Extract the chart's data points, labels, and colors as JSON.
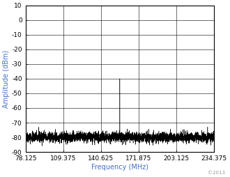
{
  "xlim": [
    78.125,
    234.375
  ],
  "ylim": [
    -90,
    10
  ],
  "xticks": [
    78.125,
    109.375,
    140.625,
    171.875,
    203.125,
    234.375
  ],
  "yticks": [
    -90,
    -80,
    -70,
    -60,
    -50,
    -40,
    -30,
    -20,
    -10,
    0,
    10
  ],
  "xlabel": "Frequency (MHz)",
  "ylabel": "Amplitude (dBm)",
  "noise_floor": -80,
  "noise_std": 1.8,
  "main_spike_freq": 156.25,
  "main_spike_amp": -40,
  "sub_spike_freq": 93.75,
  "sub_spike_amp": -75,
  "line_color": "#000000",
  "axis_label_color": "#4472C4",
  "tick_label_color": "#000000",
  "background_color": "#ffffff",
  "grid_color": "#000000",
  "copyright_text": "©2013",
  "copyright_color": "#999999",
  "copyright_fontsize": 5,
  "xlabel_fontsize": 7,
  "ylabel_fontsize": 7,
  "tick_fontsize": 6.5
}
